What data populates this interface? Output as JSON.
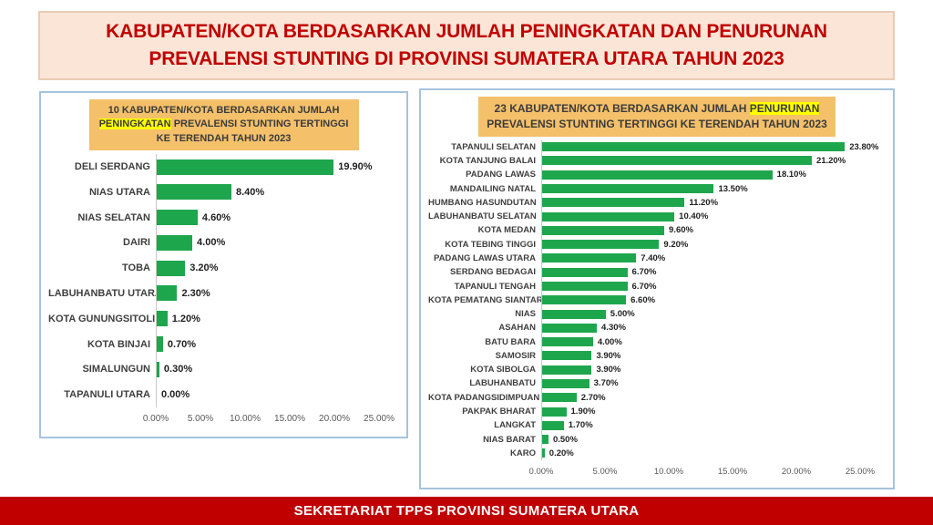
{
  "header": {
    "line1": "KABUPATEN/KOTA BERDASARKAN JUMLAH PENINGKATAN DAN PENURUNAN",
    "line2": "PREVALENSI STUNTING DI PROVINSI SUMATERA UTARA TAHUN 2023"
  },
  "footer": {
    "text": "SEKRETARIAT TPPS PROVINSI SUMATERA UTARA"
  },
  "colors": {
    "header_bg": "#FBE5D6",
    "header_text": "#C00000",
    "panel_border": "#A6C3DD",
    "chart_title_bg": "#F4C06A",
    "highlight_yellow": "#FFFF00",
    "bar_green": "#1EA64D",
    "axis_text": "#595959",
    "footer_bg": "#C00000",
    "footer_text": "#FFFFFF"
  },
  "chart_data": [
    {
      "type": "bar",
      "orientation": "horizontal",
      "title_parts": [
        {
          "text": "10 KABUPATEN/KOTA BERDASARKAN JUMLAH ",
          "highlight": false
        },
        {
          "text": "PENINGKATAN",
          "highlight": true
        },
        {
          "text": " PREVALENSI STUNTING TERTINGGI KE TERENDAH TAHUN 2023",
          "highlight": false
        }
      ],
      "categories": [
        "DELI SERDANG",
        "NIAS UTARA",
        "NIAS SELATAN",
        "DAIRI",
        "TOBA",
        "LABUHANBATU UTARA",
        "KOTA GUNUNGSITOLI",
        "KOTA BINJAI",
        "SIMALUNGUN",
        "TAPANULI UTARA"
      ],
      "values": [
        19.9,
        8.4,
        4.6,
        4.0,
        3.2,
        2.3,
        1.2,
        0.7,
        0.3,
        0.0
      ],
      "labels": [
        "19.90%",
        "8.40%",
        "4.60%",
        "4.00%",
        "3.20%",
        "2.30%",
        "1.20%",
        "0.70%",
        "0.30%",
        "0.00%"
      ],
      "x_ticks": [
        "0.00%",
        "5.00%",
        "10.00%",
        "15.00%",
        "20.00%",
        "25.00%"
      ],
      "xlim": [
        0,
        25
      ],
      "grid": false,
      "legend": "none",
      "bar_color": "#1EA64D"
    },
    {
      "type": "bar",
      "orientation": "horizontal",
      "title_parts": [
        {
          "text": "23 KABUPATEN/KOTA BERDASARKAN JUMLAH ",
          "highlight": false
        },
        {
          "text": "PENURUNAN",
          "highlight": true
        },
        {
          "text": " PREVALENSI STUNTING TERTINGGI KE TERENDAH TAHUN 2023",
          "highlight": false
        }
      ],
      "categories": [
        "TAPANULI SELATAN",
        "KOTA TANJUNG BALAI",
        "PADANG LAWAS",
        "MANDAILING NATAL",
        "HUMBANG HASUNDUTAN",
        "LABUHANBATU SELATAN",
        "KOTA MEDAN",
        "KOTA TEBING TINGGI",
        "PADANG LAWAS UTARA",
        "SERDANG BEDAGAI",
        "TAPANULI TENGAH",
        "KOTA PEMATANG SIANTAR",
        "NIAS",
        "ASAHAN",
        "BATU BARA",
        "SAMOSIR",
        "KOTA SIBOLGA",
        "LABUHANBATU",
        "KOTA PADANGSIDIMPUAN",
        "PAKPAK BHARAT",
        "LANGKAT",
        "NIAS BARAT",
        "KARO"
      ],
      "values": [
        23.8,
        21.2,
        18.1,
        13.5,
        11.2,
        10.4,
        9.6,
        9.2,
        7.4,
        6.7,
        6.7,
        6.6,
        5.0,
        4.3,
        4.0,
        3.9,
        3.9,
        3.7,
        2.7,
        1.9,
        1.7,
        0.5,
        0.2
      ],
      "labels": [
        "23.80%",
        "21.20%",
        "18.10%",
        "13.50%",
        "11.20%",
        "10.40%",
        "9.60%",
        "9.20%",
        "7.40%",
        "6.70%",
        "6.70%",
        "6.60%",
        "5.00%",
        "4.30%",
        "4.00%",
        "3.90%",
        "3.90%",
        "3.70%",
        "2.70%",
        "1.90%",
        "1.70%",
        "0.50%",
        "0.20%"
      ],
      "x_ticks": [
        "0.00%",
        "5.00%",
        "10.00%",
        "15.00%",
        "20.00%",
        "25.00%"
      ],
      "xlim": [
        0,
        25
      ],
      "grid": false,
      "legend": "none",
      "bar_color": "#1EA64D"
    }
  ]
}
